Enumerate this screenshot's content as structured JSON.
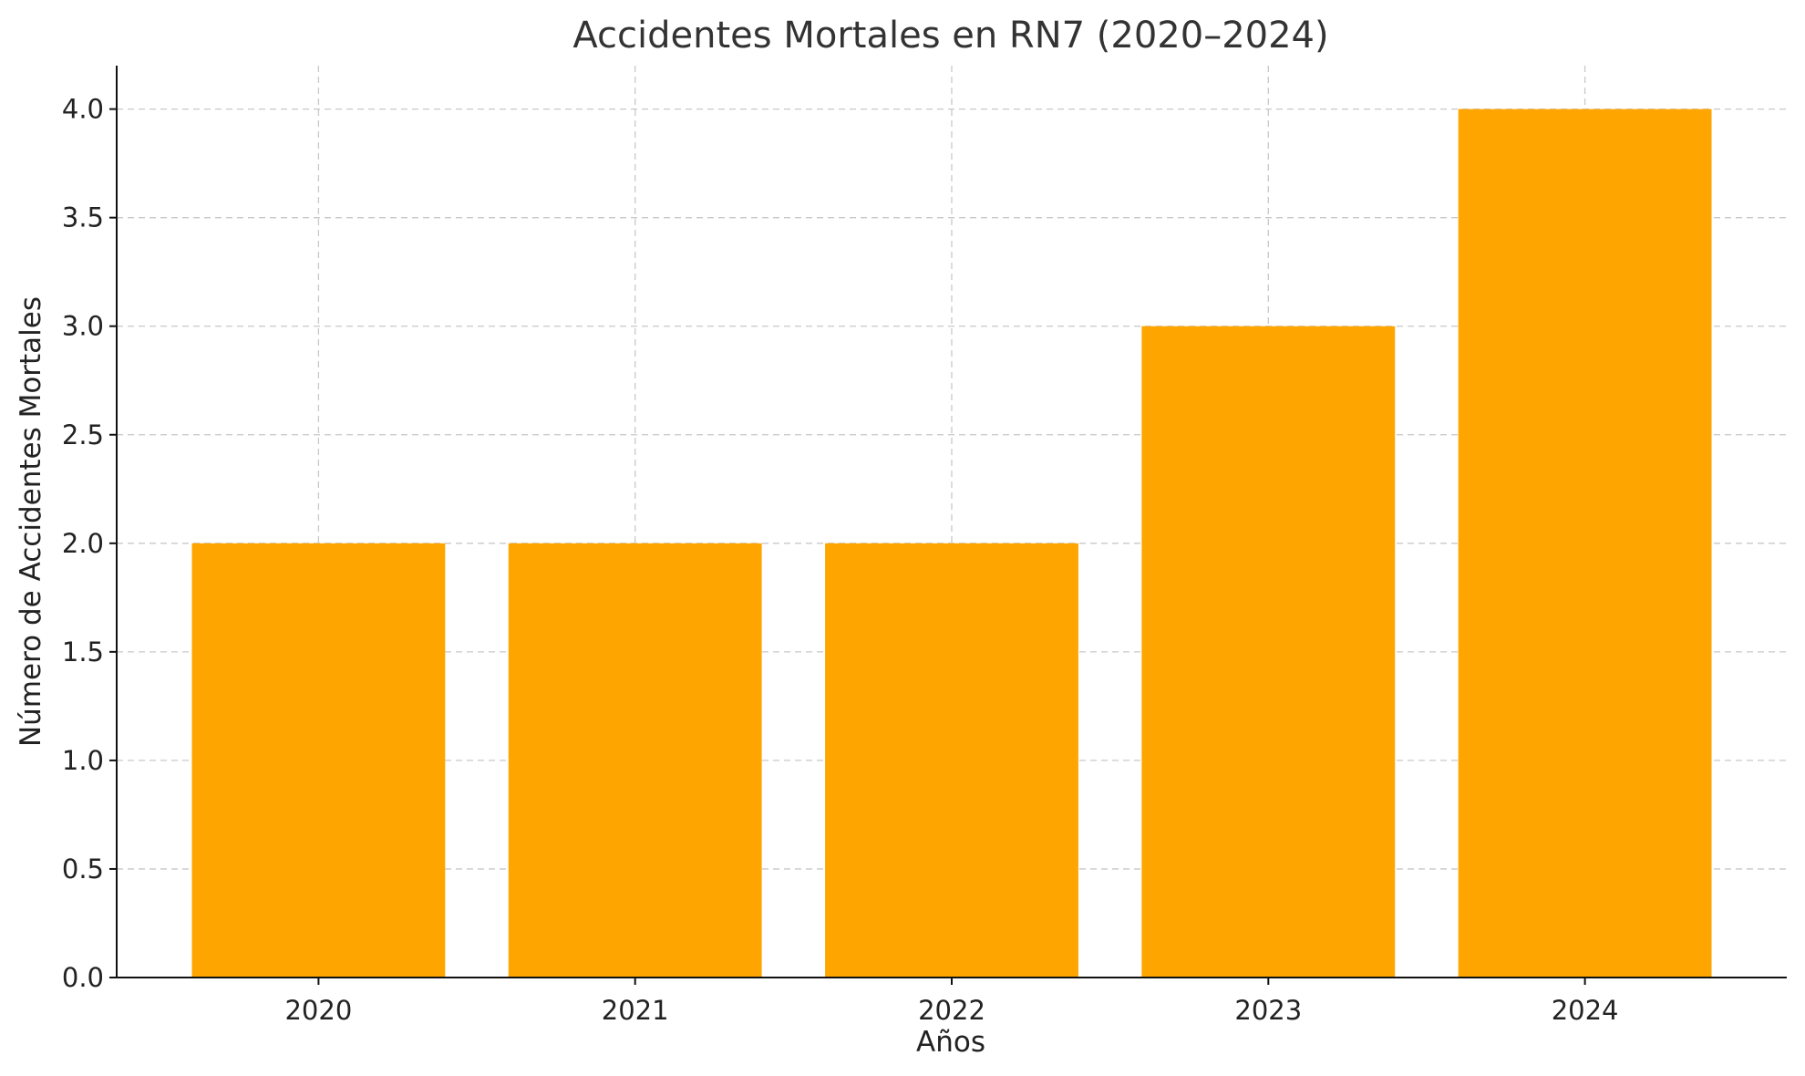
{
  "chart_data": {
    "type": "bar",
    "title": "Accidentes Mortales en RN7 (2020–2024)",
    "xlabel": "Años",
    "ylabel": "Número de Accidentes Mortales",
    "categories": [
      "2020",
      "2021",
      "2022",
      "2023",
      "2024"
    ],
    "values": [
      2,
      2,
      2,
      3,
      4
    ],
    "ylim": [
      0,
      4.2
    ],
    "yticks": [
      "0.0",
      "0.5",
      "1.0",
      "1.5",
      "2.0",
      "2.5",
      "3.0",
      "3.5",
      "4.0"
    ],
    "grid": true,
    "bar_color": "#FFA500"
  }
}
